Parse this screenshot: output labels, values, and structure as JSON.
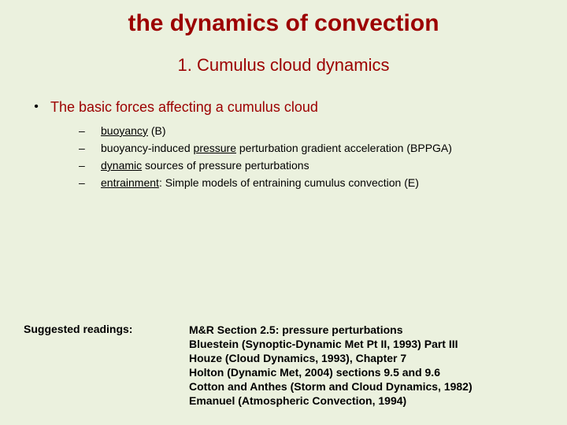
{
  "colors": {
    "background": "#ebf1de",
    "heading": "#9c0000",
    "body": "#000000"
  },
  "fonts": {
    "main_family": "Comic Sans MS",
    "readings_family": "Arial",
    "title_size_pt": 30,
    "subtitle_size_pt": 22,
    "bullet_size_pt": 18,
    "sub_size_pt": 14,
    "readings_size_pt": 14
  },
  "title": "the dynamics of convection",
  "subtitle": "1. Cumulus cloud dynamics",
  "bullet_marker": "•",
  "sub_marker": "–",
  "main_bullet": "The basic forces affecting a cumulus cloud",
  "sub_bullets": [
    {
      "u": "buoyancy",
      "rest": " (B)"
    },
    {
      "pre": "buoyancy-induced ",
      "u": "pressure",
      "rest": " perturbation gradient acceleration (BPPGA)"
    },
    {
      "u": "dynamic",
      "rest": " sources of pressure perturbations"
    },
    {
      "u": "entrainment",
      "rest": ": Simple models of entraining cumulus convection (E)"
    }
  ],
  "readings_label": "Suggested readings:",
  "readings": [
    "M&R Section 2.5: pressure perturbations",
    "Bluestein (Synoptic-Dynamic Met Pt II, 1993) Part III",
    "Houze (Cloud Dynamics, 1993), Chapter 7",
    "Holton (Dynamic Met, 2004) sections 9.5 and 9.6",
    "Cotton and Anthes (Storm and Cloud Dynamics, 1982)",
    "Emanuel (Atmospheric Convection, 1994)"
  ]
}
